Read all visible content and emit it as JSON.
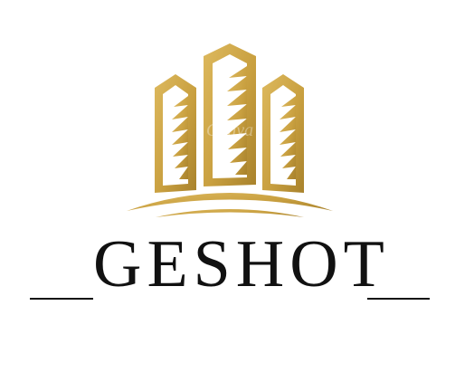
{
  "brand": {
    "name": "GESHOT",
    "watermark": "Canva"
  },
  "colors": {
    "gold": "#C9A040",
    "gold_light": "#DDB95E",
    "gold_dark": "#A8822C",
    "text": "#111111",
    "background": "#FFFFFF"
  },
  "icons": {
    "logo": "three-towers-skyline-icon"
  }
}
